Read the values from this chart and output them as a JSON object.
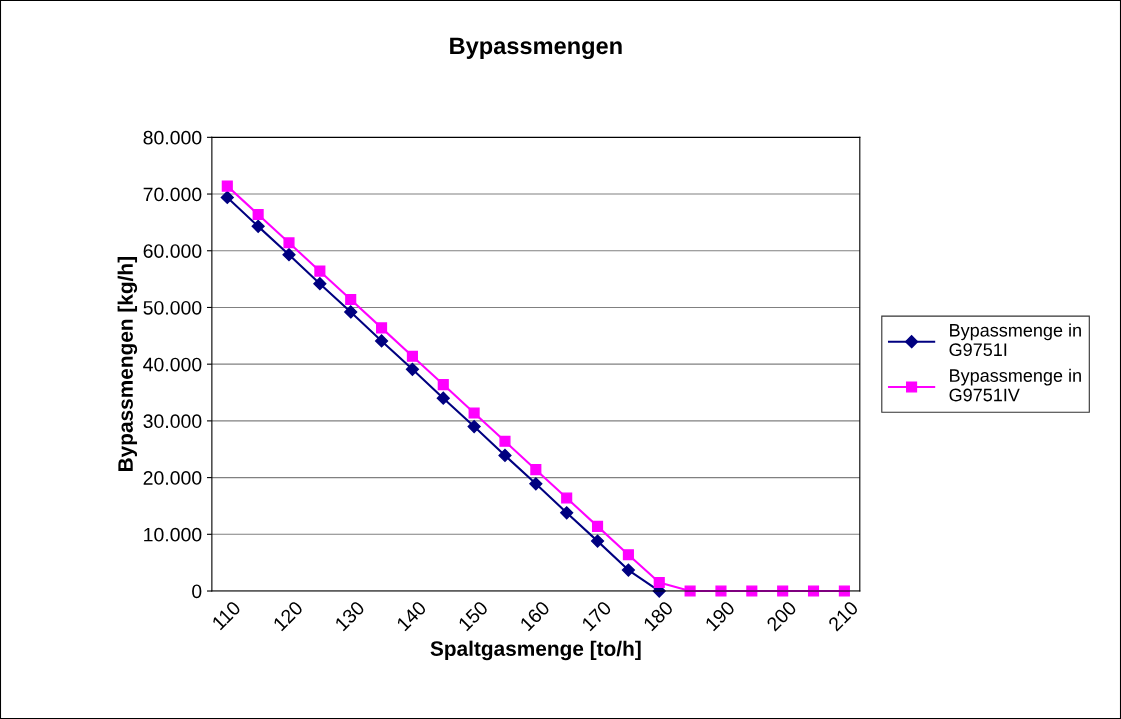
{
  "chart_data": {
    "type": "line",
    "title": "Bypassmengen",
    "xlabel": "Spaltgasmenge [to/h]",
    "ylabel": "Bypassmengen [kg/h]",
    "categories": [
      "110",
      null,
      "120",
      null,
      "130",
      null,
      "140",
      null,
      "150",
      null,
      "160",
      null,
      "170",
      null,
      "180",
      null,
      "190",
      null,
      "200",
      null,
      "210"
    ],
    "series": [
      {
        "name": "Bypassmenge in G9751I",
        "color": "#000080",
        "marker": "diamond",
        "values": [
          69400,
          64300,
          59300,
          54200,
          49200,
          44100,
          39100,
          34000,
          29000,
          23900,
          18900,
          13800,
          8800,
          3700,
          0,
          null,
          null,
          null,
          null,
          null,
          null
        ]
      },
      {
        "name": "Bypassmenge in G9751IV",
        "color": "#ff00ff",
        "marker": "square",
        "values": [
          71400,
          66400,
          61400,
          56400,
          51400,
          46400,
          41400,
          36400,
          31400,
          26400,
          21400,
          16400,
          11400,
          6400,
          1500,
          0,
          0,
          0,
          0,
          0,
          0
        ]
      }
    ],
    "ylim": [
      0,
      80000
    ],
    "yticks": [
      {
        "value": 0,
        "label": "0"
      },
      {
        "value": 10000,
        "label": "10.000"
      },
      {
        "value": 20000,
        "label": "20.000"
      },
      {
        "value": 30000,
        "label": "30.000"
      },
      {
        "value": 40000,
        "label": "40.000"
      },
      {
        "value": 50000,
        "label": "50.000"
      },
      {
        "value": 60000,
        "label": "60.000"
      },
      {
        "value": 70000,
        "label": "70.000"
      },
      {
        "value": 80000,
        "label": "80.000"
      }
    ],
    "grid": "y",
    "legend": "right",
    "line_style": "solid"
  }
}
